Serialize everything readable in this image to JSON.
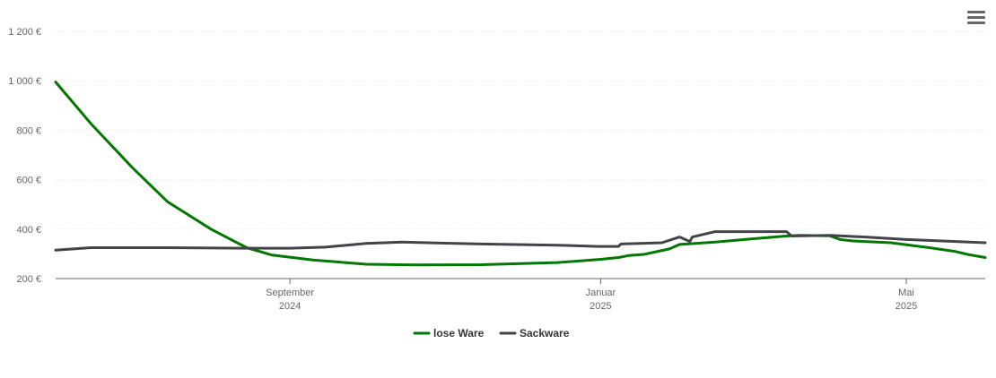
{
  "chart_data": {
    "type": "line",
    "title": "",
    "xlabel": "",
    "ylabel": "",
    "ylim": [
      200,
      1200
    ],
    "xlim": [
      "2024-06-01",
      "2025-06-01"
    ],
    "y_ticks": [
      "200 €",
      "400 €",
      "600 €",
      "800 €",
      "1 000 €",
      "1 200 €"
    ],
    "y_tick_values": [
      200,
      400,
      600,
      800,
      1000,
      1200
    ],
    "x_ticks": [
      {
        "date": "2024-09-01",
        "line1": "September",
        "line2": "2024"
      },
      {
        "date": "2025-01-01",
        "line1": "Januar",
        "line2": "2025"
      },
      {
        "date": "2025-05-01",
        "line1": "Mai",
        "line2": "2025"
      }
    ],
    "grid": true,
    "legend": "bottom-center",
    "series": [
      {
        "name": "lose Ware",
        "color": "#007800",
        "points": [
          [
            "2024-06-01",
            995
          ],
          [
            "2024-06-15",
            825
          ],
          [
            "2024-07-01",
            650
          ],
          [
            "2024-07-15",
            510
          ],
          [
            "2024-08-01",
            400
          ],
          [
            "2024-08-15",
            325
          ],
          [
            "2024-08-25",
            295
          ],
          [
            "2024-09-10",
            275
          ],
          [
            "2024-10-01",
            258
          ],
          [
            "2024-10-20",
            255
          ],
          [
            "2024-11-15",
            256
          ],
          [
            "2024-12-15",
            265
          ],
          [
            "2025-01-01",
            278
          ],
          [
            "2025-01-08",
            285
          ],
          [
            "2025-01-12",
            293
          ],
          [
            "2025-01-18",
            298
          ],
          [
            "2025-01-28",
            320
          ],
          [
            "2025-02-01",
            338
          ],
          [
            "2025-02-15",
            348
          ],
          [
            "2025-03-01",
            360
          ],
          [
            "2025-03-15",
            372
          ],
          [
            "2025-03-20",
            375
          ],
          [
            "2025-04-01",
            373
          ],
          [
            "2025-04-05",
            358
          ],
          [
            "2025-04-10",
            352
          ],
          [
            "2025-04-25",
            345
          ],
          [
            "2025-05-10",
            325
          ],
          [
            "2025-05-20",
            310
          ],
          [
            "2025-05-25",
            298
          ],
          [
            "2025-06-01",
            285
          ]
        ]
      },
      {
        "name": "Sackware",
        "color": "#434348",
        "points": [
          [
            "2024-06-01",
            315
          ],
          [
            "2024-06-15",
            325
          ],
          [
            "2024-07-15",
            325
          ],
          [
            "2024-08-15",
            323
          ],
          [
            "2024-09-01",
            323
          ],
          [
            "2024-09-15",
            327
          ],
          [
            "2024-10-01",
            342
          ],
          [
            "2024-10-15",
            348
          ],
          [
            "2024-11-01",
            343
          ],
          [
            "2024-11-15",
            340
          ],
          [
            "2024-12-15",
            335
          ],
          [
            "2024-12-31",
            330
          ],
          [
            "2025-01-08",
            330
          ],
          [
            "2025-01-09",
            340
          ],
          [
            "2025-01-25",
            345
          ],
          [
            "2025-02-01",
            368
          ],
          [
            "2025-02-05",
            350
          ],
          [
            "2025-02-06",
            368
          ],
          [
            "2025-02-15",
            390
          ],
          [
            "2025-03-01",
            390
          ],
          [
            "2025-03-15",
            390
          ],
          [
            "2025-03-17",
            372
          ],
          [
            "2025-04-01",
            375
          ],
          [
            "2025-04-15",
            368
          ],
          [
            "2025-05-01",
            358
          ],
          [
            "2025-05-15",
            352
          ],
          [
            "2025-06-01",
            345
          ]
        ]
      }
    ]
  }
}
